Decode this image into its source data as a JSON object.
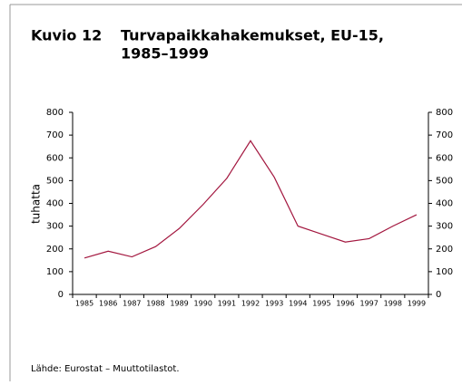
{
  "chart_data": {
    "type": "line",
    "figure_label": "Kuvio 12",
    "title": [
      "Turvapaikkahakemukset, EU-15,",
      "1985–1999"
    ],
    "y_label": "tuhatta",
    "source": "Lähde: Eurostat – Muuttotilastot.",
    "categories": [
      "1985",
      "1986",
      "1987",
      "1988",
      "1989",
      "1990",
      "1991",
      "1992",
      "1993",
      "1994",
      "1995",
      "1996",
      "1997",
      "1998",
      "1999"
    ],
    "series": [
      {
        "color": "#a3173f",
        "values": [
          160,
          190,
          165,
          210,
          290,
          395,
          510,
          675,
          515,
          300,
          265,
          230,
          245,
          300,
          350
        ]
      }
    ],
    "ylim": [
      0,
      800
    ],
    "yticks": [
      0,
      100,
      200,
      300,
      400,
      500,
      600,
      700,
      800
    ],
    "y2lim": [
      0,
      800
    ],
    "y2ticks": [
      0,
      100,
      200,
      300,
      400,
      500,
      600,
      700,
      800
    ],
    "grid": false
  }
}
